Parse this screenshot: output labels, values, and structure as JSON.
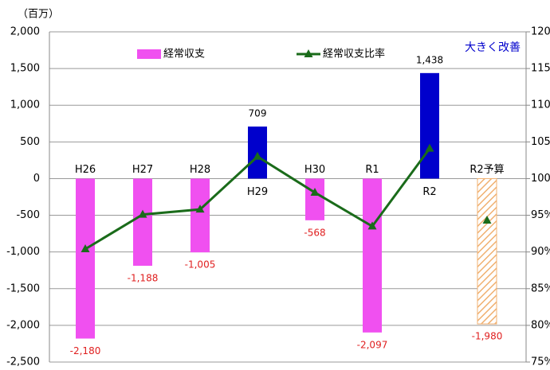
{
  "chart_data": {
    "type": "bar_line",
    "y_unit_label": "（百万）",
    "annotation": "大きく改善",
    "categories": [
      "H26",
      "H27",
      "H28",
      "H29",
      "H30",
      "R1",
      "R2",
      "R2予算"
    ],
    "hatched_categories": [
      "R2予算"
    ],
    "series": [
      {
        "name": "経常収支",
        "type": "bar",
        "color": "#f050f0",
        "colors": [
          "#f050f0",
          "#f050f0",
          "#f050f0",
          "#0000cc",
          "#f050f0",
          "#f050f0",
          "#0000cc",
          "#f0b070"
        ],
        "values": [
          -2180,
          -1188,
          -1005,
          709,
          -568,
          -2097,
          1438,
          -1980
        ],
        "value_labels": [
          "-2,180",
          "-1,188",
          "-1,005",
          "709",
          "-568",
          "-2,097",
          "1,438",
          "-1,980"
        ]
      },
      {
        "name": "経常収支比率",
        "type": "line",
        "axis": "y2",
        "color": "#1a6b1a",
        "values": [
          90.4,
          95.1,
          95.8,
          103.0,
          98.1,
          93.5,
          104.1,
          94.3
        ]
      }
    ],
    "ylim": [
      -2500,
      2000
    ],
    "yticks": [
      {
        "value": -2500,
        "label": "-2,500"
      },
      {
        "value": -2000,
        "label": "-2,000"
      },
      {
        "value": -1500,
        "label": "-1,500"
      },
      {
        "value": -1000,
        "label": "-1,000"
      },
      -500,
      0,
      500,
      {
        "value": 1000,
        "label": "1,000"
      },
      {
        "value": 1500,
        "label": "1,500"
      },
      {
        "value": 2000,
        "label": "2,000"
      }
    ],
    "y2lim": [
      75,
      120
    ],
    "y2ticks": [
      {
        "value": 75,
        "label": "75%"
      },
      {
        "value": 80,
        "label": "80%"
      },
      {
        "value": 85,
        "label": "85%"
      },
      {
        "value": 90,
        "label": "90%"
      },
      {
        "value": 95,
        "label": "95%"
      },
      {
        "value": 100,
        "label": "100%"
      },
      {
        "value": 105,
        "label": "105%"
      },
      {
        "value": 110,
        "label": "110%"
      },
      {
        "value": 115,
        "label": "115%"
      },
      {
        "value": 120,
        "label": "120%"
      }
    ],
    "grid": true
  }
}
